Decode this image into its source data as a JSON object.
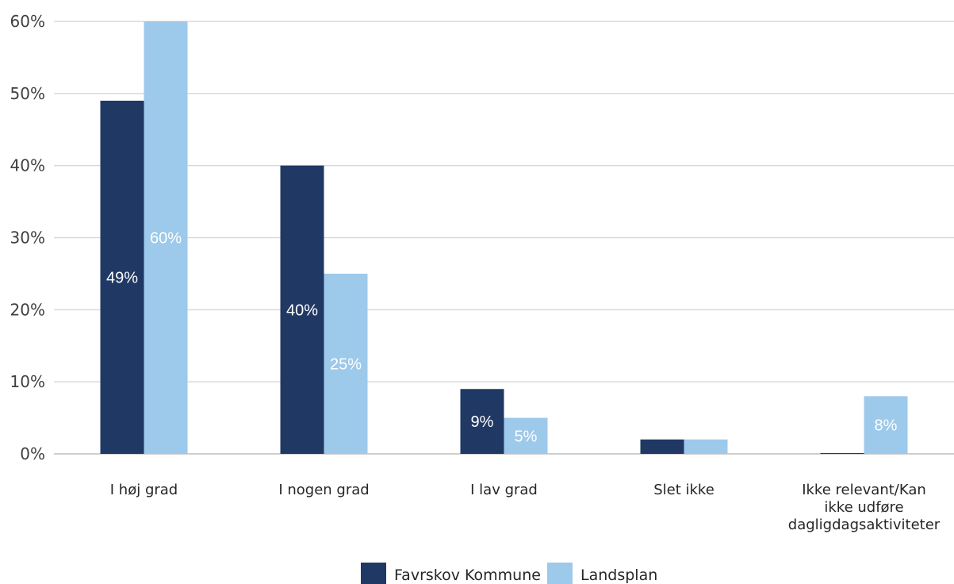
{
  "chart_data": {
    "type": "bar",
    "categories": [
      [
        "I høj grad"
      ],
      [
        "I nogen grad"
      ],
      [
        "I lav grad"
      ],
      [
        "Slet ikke"
      ],
      [
        "Ikke relevant/Kan",
        "ikke udføre",
        "dagligdagsaktiviteter"
      ]
    ],
    "series": [
      {
        "name": "Favrskov Kommune",
        "color": "#203864",
        "label_color": "#ffffff",
        "values": [
          49,
          40,
          9,
          2,
          0.1
        ],
        "labels": [
          "49%",
          "40%",
          "9%",
          "",
          ""
        ]
      },
      {
        "name": "Landsplan",
        "color": "#9dc9eb",
        "label_color": "#ffffff",
        "values": [
          60,
          25,
          5,
          2,
          8
        ],
        "labels": [
          "60%",
          "25%",
          "5%",
          "",
          "8%"
        ]
      }
    ],
    "y_ticks": [
      "0%",
      "10%",
      "20%",
      "30%",
      "40%",
      "50%",
      "60%"
    ],
    "ylim": [
      0,
      60
    ],
    "gridlines": true,
    "legend_position": "bottom"
  }
}
